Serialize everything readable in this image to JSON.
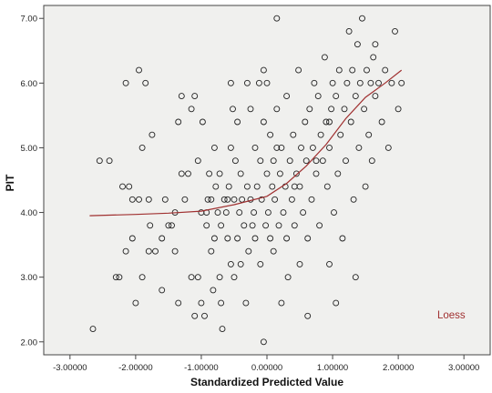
{
  "chart_data": {
    "type": "scatter",
    "title": "",
    "xlabel": "Standardized Predicted Value",
    "ylabel": "PIT",
    "xlim": [
      -3.4,
      3.4
    ],
    "ylim": [
      1.8,
      7.2
    ],
    "x_ticks": [
      -3,
      -2,
      -1,
      0,
      1,
      2,
      3
    ],
    "x_tick_labels": [
      "-3.00000",
      "-2.00000",
      "-1.00000",
      "0.00000",
      "1.00000",
      "2.00000",
      "3.00000"
    ],
    "y_ticks": [
      2,
      3,
      4,
      5,
      6,
      7
    ],
    "y_tick_labels": [
      "2.00",
      "3.00",
      "4.00",
      "5.00",
      "6.00",
      "7.00"
    ],
    "grid": false,
    "legend_placement": "bottom-right",
    "colors": {
      "plot_background": "#f0f0ee",
      "marker": "#222222",
      "loess": "#a03030",
      "frame": "#444444"
    },
    "points": [
      [
        -2.65,
        2.2
      ],
      [
        -2.55,
        4.8
      ],
      [
        -2.4,
        4.8
      ],
      [
        -2.3,
        3.0
      ],
      [
        -2.25,
        3.0
      ],
      [
        -2.2,
        4.4
      ],
      [
        -2.15,
        3.4
      ],
      [
        -2.15,
        6.0
      ],
      [
        -2.1,
        4.4
      ],
      [
        -2.05,
        4.2
      ],
      [
        -2.05,
        3.6
      ],
      [
        -2.0,
        2.6
      ],
      [
        -1.95,
        6.2
      ],
      [
        -1.95,
        4.2
      ],
      [
        -1.9,
        3.0
      ],
      [
        -1.9,
        5.0
      ],
      [
        -1.85,
        6.0
      ],
      [
        -1.8,
        4.2
      ],
      [
        -1.78,
        3.8
      ],
      [
        -1.75,
        5.2
      ],
      [
        -1.7,
        3.4
      ],
      [
        -1.6,
        3.6
      ],
      [
        -1.55,
        4.2
      ],
      [
        -1.5,
        3.8
      ],
      [
        -1.45,
        3.8
      ],
      [
        -1.4,
        3.4
      ],
      [
        -1.35,
        2.6
      ],
      [
        -1.35,
        5.4
      ],
      [
        -1.3,
        4.6
      ],
      [
        -1.3,
        5.8
      ],
      [
        -1.25,
        4.2
      ],
      [
        -1.2,
        4.6
      ],
      [
        -1.15,
        5.6
      ],
      [
        -1.15,
        3.0
      ],
      [
        -1.1,
        5.8
      ],
      [
        -1.1,
        2.4
      ],
      [
        -1.05,
        4.8
      ],
      [
        -1.05,
        3.0
      ],
      [
        -1.0,
        4.0
      ],
      [
        -1.0,
        2.6
      ],
      [
        -0.98,
        5.4
      ],
      [
        -0.95,
        2.4
      ],
      [
        -0.92,
        3.8
      ],
      [
        -0.9,
        4.2
      ],
      [
        -0.88,
        4.6
      ],
      [
        -0.85,
        4.2
      ],
      [
        -0.85,
        3.4
      ],
      [
        -0.82,
        2.8
      ],
      [
        -0.8,
        5.0
      ],
      [
        -0.8,
        3.6
      ],
      [
        -0.78,
        4.4
      ],
      [
        -0.75,
        4.0
      ],
      [
        -0.72,
        4.6
      ],
      [
        -0.72,
        3.0
      ],
      [
        -0.7,
        2.6
      ],
      [
        -0.7,
        3.8
      ],
      [
        -0.68,
        2.2
      ],
      [
        -0.65,
        4.2
      ],
      [
        -0.62,
        4.0
      ],
      [
        -0.6,
        3.6
      ],
      [
        -0.58,
        4.4
      ],
      [
        -0.55,
        5.0
      ],
      [
        -0.55,
        3.2
      ],
      [
        -0.52,
        5.6
      ],
      [
        -0.5,
        4.2
      ],
      [
        -0.5,
        3.0
      ],
      [
        -0.48,
        4.8
      ],
      [
        -0.45,
        5.4
      ],
      [
        -0.45,
        3.6
      ],
      [
        -0.42,
        4.0
      ],
      [
        -0.4,
        4.6
      ],
      [
        -0.4,
        3.2
      ],
      [
        -0.38,
        4.2
      ],
      [
        -0.35,
        3.8
      ],
      [
        -0.32,
        2.6
      ],
      [
        -0.3,
        4.4
      ],
      [
        -0.3,
        6.0
      ],
      [
        -0.28,
        3.4
      ],
      [
        -0.25,
        4.2
      ],
      [
        -0.22,
        3.8
      ],
      [
        -0.2,
        4.0
      ],
      [
        -0.18,
        5.0
      ],
      [
        -0.18,
        3.6
      ],
      [
        -0.15,
        4.4
      ],
      [
        -0.12,
        6.0
      ],
      [
        -0.1,
        4.8
      ],
      [
        -0.1,
        3.2
      ],
      [
        -0.08,
        4.2
      ],
      [
        -0.05,
        5.4
      ],
      [
        -0.05,
        2.0
      ],
      [
        -0.02,
        3.8
      ],
      [
        0.0,
        4.6
      ],
      [
        0.0,
        6.0
      ],
      [
        0.02,
        4.0
      ],
      [
        0.05,
        5.2
      ],
      [
        0.05,
        3.6
      ],
      [
        0.08,
        4.4
      ],
      [
        0.1,
        4.8
      ],
      [
        0.1,
        3.4
      ],
      [
        0.12,
        4.2
      ],
      [
        0.15,
        5.6
      ],
      [
        0.15,
        7.0
      ],
      [
        0.18,
        3.8
      ],
      [
        0.2,
        4.6
      ],
      [
        0.22,
        5.0
      ],
      [
        0.22,
        2.6
      ],
      [
        0.25,
        4.0
      ],
      [
        0.28,
        4.4
      ],
      [
        0.3,
        5.8
      ],
      [
        0.3,
        3.6
      ],
      [
        0.32,
        3.0
      ],
      [
        0.35,
        4.8
      ],
      [
        0.38,
        4.2
      ],
      [
        0.4,
        5.2
      ],
      [
        0.42,
        3.8
      ],
      [
        0.45,
        4.6
      ],
      [
        0.48,
        6.2
      ],
      [
        0.5,
        4.4
      ],
      [
        0.5,
        3.2
      ],
      [
        0.52,
        5.0
      ],
      [
        0.55,
        4.0
      ],
      [
        0.58,
        5.4
      ],
      [
        0.6,
        4.8
      ],
      [
        0.62,
        3.6
      ],
      [
        0.65,
        5.6
      ],
      [
        0.68,
        4.2
      ],
      [
        0.7,
        5.0
      ],
      [
        0.72,
        6.0
      ],
      [
        0.75,
        4.6
      ],
      [
        0.78,
        5.8
      ],
      [
        0.8,
        3.8
      ],
      [
        0.82,
        5.2
      ],
      [
        0.85,
        4.8
      ],
      [
        0.88,
        6.4
      ],
      [
        0.9,
        5.4
      ],
      [
        0.92,
        4.4
      ],
      [
        0.95,
        5.0
      ],
      [
        0.98,
        5.6
      ],
      [
        1.0,
        6.0
      ],
      [
        1.02,
        4.0
      ],
      [
        1.05,
        5.8
      ],
      [
        1.08,
        4.6
      ],
      [
        1.1,
        6.2
      ],
      [
        1.12,
        5.2
      ],
      [
        1.15,
        3.6
      ],
      [
        1.18,
        5.6
      ],
      [
        1.2,
        4.8
      ],
      [
        1.22,
        6.0
      ],
      [
        1.25,
        6.8
      ],
      [
        1.28,
        5.4
      ],
      [
        1.3,
        6.2
      ],
      [
        1.32,
        4.2
      ],
      [
        1.35,
        5.8
      ],
      [
        1.38,
        6.6
      ],
      [
        1.4,
        5.0
      ],
      [
        1.42,
        6.0
      ],
      [
        1.45,
        7.0
      ],
      [
        1.48,
        5.6
      ],
      [
        1.5,
        4.4
      ],
      [
        1.52,
        6.2
      ],
      [
        1.55,
        5.2
      ],
      [
        1.58,
        6.0
      ],
      [
        1.6,
        4.8
      ],
      [
        1.62,
        6.4
      ],
      [
        1.65,
        5.8
      ],
      [
        1.7,
        6.0
      ],
      [
        1.75,
        5.4
      ],
      [
        1.8,
        6.2
      ],
      [
        1.85,
        5.0
      ],
      [
        1.9,
        6.0
      ],
      [
        1.95,
        6.8
      ],
      [
        2.0,
        5.6
      ],
      [
        2.05,
        6.0
      ],
      [
        -0.92,
        4.0
      ],
      [
        -0.6,
        4.2
      ],
      [
        0.42,
        4.4
      ],
      [
        0.75,
        4.8
      ],
      [
        1.35,
        3.0
      ],
      [
        0.62,
        2.4
      ],
      [
        -1.6,
        2.8
      ],
      [
        0.95,
        3.2
      ],
      [
        1.05,
        2.6
      ],
      [
        -0.25,
        5.6
      ],
      [
        0.15,
        5.0
      ],
      [
        -0.05,
        6.2
      ],
      [
        1.65,
        6.6
      ],
      [
        -1.4,
        4.0
      ],
      [
        -1.8,
        3.4
      ],
      [
        -0.55,
        6.0
      ],
      [
        0.95,
        5.4
      ]
    ],
    "loess": [
      [
        -2.7,
        3.95
      ],
      [
        -2.0,
        3.97
      ],
      [
        -1.5,
        3.99
      ],
      [
        -1.0,
        4.02
      ],
      [
        -0.5,
        4.12
      ],
      [
        0.0,
        4.25
      ],
      [
        0.3,
        4.45
      ],
      [
        0.6,
        4.72
      ],
      [
        0.9,
        5.05
      ],
      [
        1.2,
        5.45
      ],
      [
        1.5,
        5.78
      ],
      [
        1.8,
        6.0
      ],
      [
        2.05,
        6.2
      ]
    ],
    "legend": [
      "Loess"
    ]
  }
}
